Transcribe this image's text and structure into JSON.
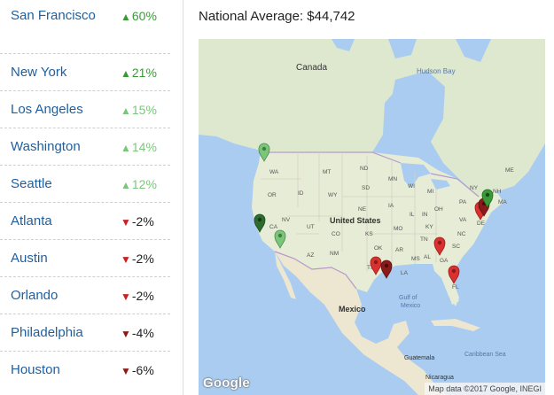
{
  "colors": {
    "link": "#1f5f9f",
    "increase_strong": "#3a9a3a",
    "increase_light": "#7cc67c",
    "decrease": "#cc1f1f",
    "decrease_dark": "#8b1a1a",
    "water": "#a9ccf0",
    "land": "#e6ecd5"
  },
  "cities": [
    {
      "name": "San Francisco",
      "arrow": "▲",
      "change": "60%",
      "direction": "up",
      "shade": "strong"
    },
    {
      "name": "New York",
      "arrow": "▲",
      "change": "21%",
      "direction": "up",
      "shade": "strong"
    },
    {
      "name": "Los Angeles",
      "arrow": "▲",
      "change": "15%",
      "direction": "up",
      "shade": "light"
    },
    {
      "name": "Washington",
      "arrow": "▲",
      "change": "14%",
      "direction": "up",
      "shade": "light"
    },
    {
      "name": "Seattle",
      "arrow": "▲",
      "change": "12%",
      "direction": "up",
      "shade": "light"
    },
    {
      "name": "Atlanta",
      "arrow": "▼",
      "change": "-2%",
      "direction": "down",
      "shade": "red"
    },
    {
      "name": "Austin",
      "arrow": "▼",
      "change": "-2%",
      "direction": "down",
      "shade": "red"
    },
    {
      "name": "Orlando",
      "arrow": "▼",
      "change": "-2%",
      "direction": "down",
      "shade": "red"
    },
    {
      "name": "Philadelphia",
      "arrow": "▼",
      "change": "-4%",
      "direction": "down",
      "shade": "dark"
    },
    {
      "name": "Houston",
      "arrow": "▼",
      "change": "-6%",
      "direction": "down",
      "shade": "dark"
    }
  ],
  "header": {
    "national_average": "National Average: $44,742"
  },
  "map": {
    "labels": {
      "canada": "Canada",
      "hudson_bay": "Hudson Bay",
      "united_states": "United States",
      "mexico": "Mexico",
      "gulf_of_mexico_1": "Gulf of",
      "gulf_of_mexico_2": "Mexico",
      "guatemala": "Guatemala",
      "nicaragua": "Nicaragua",
      "caribbean_sea": "Caribbean Sea",
      "states": {
        "wa": "WA",
        "or": "OR",
        "id": "ID",
        "mt": "MT",
        "nd": "ND",
        "mn": "MN",
        "sd": "SD",
        "wy": "WY",
        "nv": "NV",
        "ut": "UT",
        "co": "CO",
        "ne": "NE",
        "ks": "KS",
        "ca": "CA",
        "az": "AZ",
        "nm": "NM",
        "ok": "OK",
        "tx": "TX",
        "mo": "MO",
        "ar": "AR",
        "la": "LA",
        "ia": "IA",
        "il": "IL",
        "in": "IN",
        "oh": "OH",
        "ky": "KY",
        "tn": "TN",
        "ms": "MS",
        "al": "AL",
        "ga": "GA",
        "fl": "FL",
        "sc": "SC",
        "nc": "NC",
        "va": "VA",
        "pa": "PA",
        "ny": "NY",
        "wi": "WI",
        "mi": "MI",
        "me": "ME",
        "nh": "NH",
        "ma": "MA",
        "de": "DE"
      }
    },
    "logo": "Google",
    "attribution": "Map data ©2017 Google, INEGI"
  }
}
